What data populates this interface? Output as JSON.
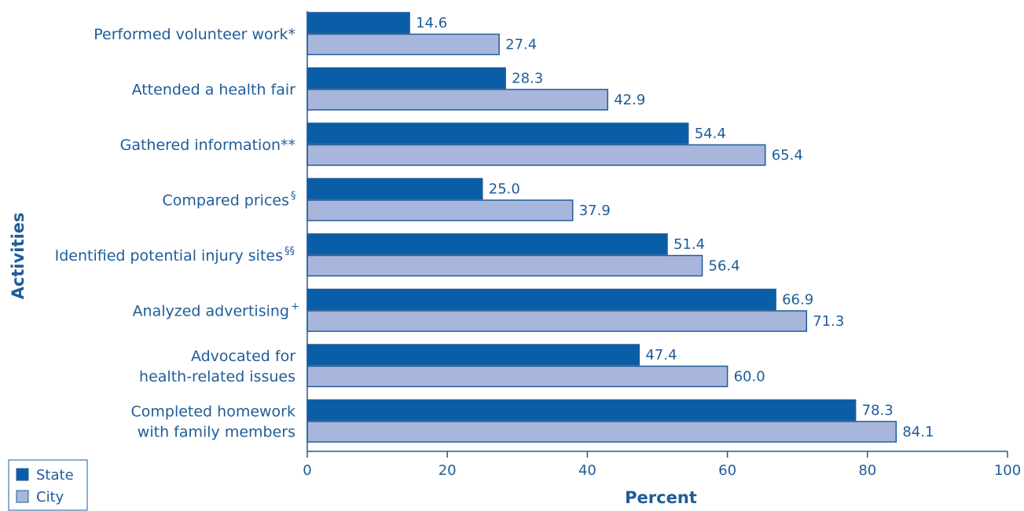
{
  "chart_data": {
    "type": "bar",
    "orientation": "horizontal",
    "categories": [
      {
        "lines": [
          "Performed volunteer work*"
        ],
        "sup": ""
      },
      {
        "lines": [
          "Attended a health fair"
        ],
        "sup": ""
      },
      {
        "lines": [
          "Gathered information**"
        ],
        "sup": ""
      },
      {
        "lines": [
          "Compared prices"
        ],
        "sup": "§"
      },
      {
        "lines": [
          "Identified potential injury sites"
        ],
        "sup": "§§"
      },
      {
        "lines": [
          "Analyzed advertising"
        ],
        "sup": "+"
      },
      {
        "lines": [
          "Advocated for",
          "health-related issues"
        ],
        "sup": ""
      },
      {
        "lines": [
          "Completed homework",
          "with family members"
        ],
        "sup": ""
      }
    ],
    "series": [
      {
        "name": "State",
        "values": [
          14.6,
          28.3,
          54.4,
          25.0,
          51.4,
          66.9,
          47.4,
          78.3
        ],
        "labels": [
          "14.6",
          "28.3",
          "54.4",
          "25.0",
          "51.4",
          "66.9",
          "47.4",
          "78.3"
        ],
        "color": "#0a5ea8"
      },
      {
        "name": "City",
        "values": [
          27.4,
          42.9,
          65.4,
          37.9,
          56.4,
          71.3,
          60.0,
          84.1
        ],
        "labels": [
          "27.4",
          "42.9",
          "65.4",
          "37.9",
          "56.4",
          "71.3",
          "60.0",
          "84.1"
        ],
        "color": "#a9b6dc"
      }
    ],
    "xlabel": "Percent",
    "ylabel": "Activities",
    "xlim": [
      0,
      100
    ],
    "xticks": [
      0,
      20,
      40,
      60,
      80,
      100
    ],
    "grid": false,
    "legend_position": "bottom-left"
  },
  "colors": {
    "text": "#1f5c99",
    "axis": "#1f5c99",
    "bar_outline": "#1f5c99"
  }
}
